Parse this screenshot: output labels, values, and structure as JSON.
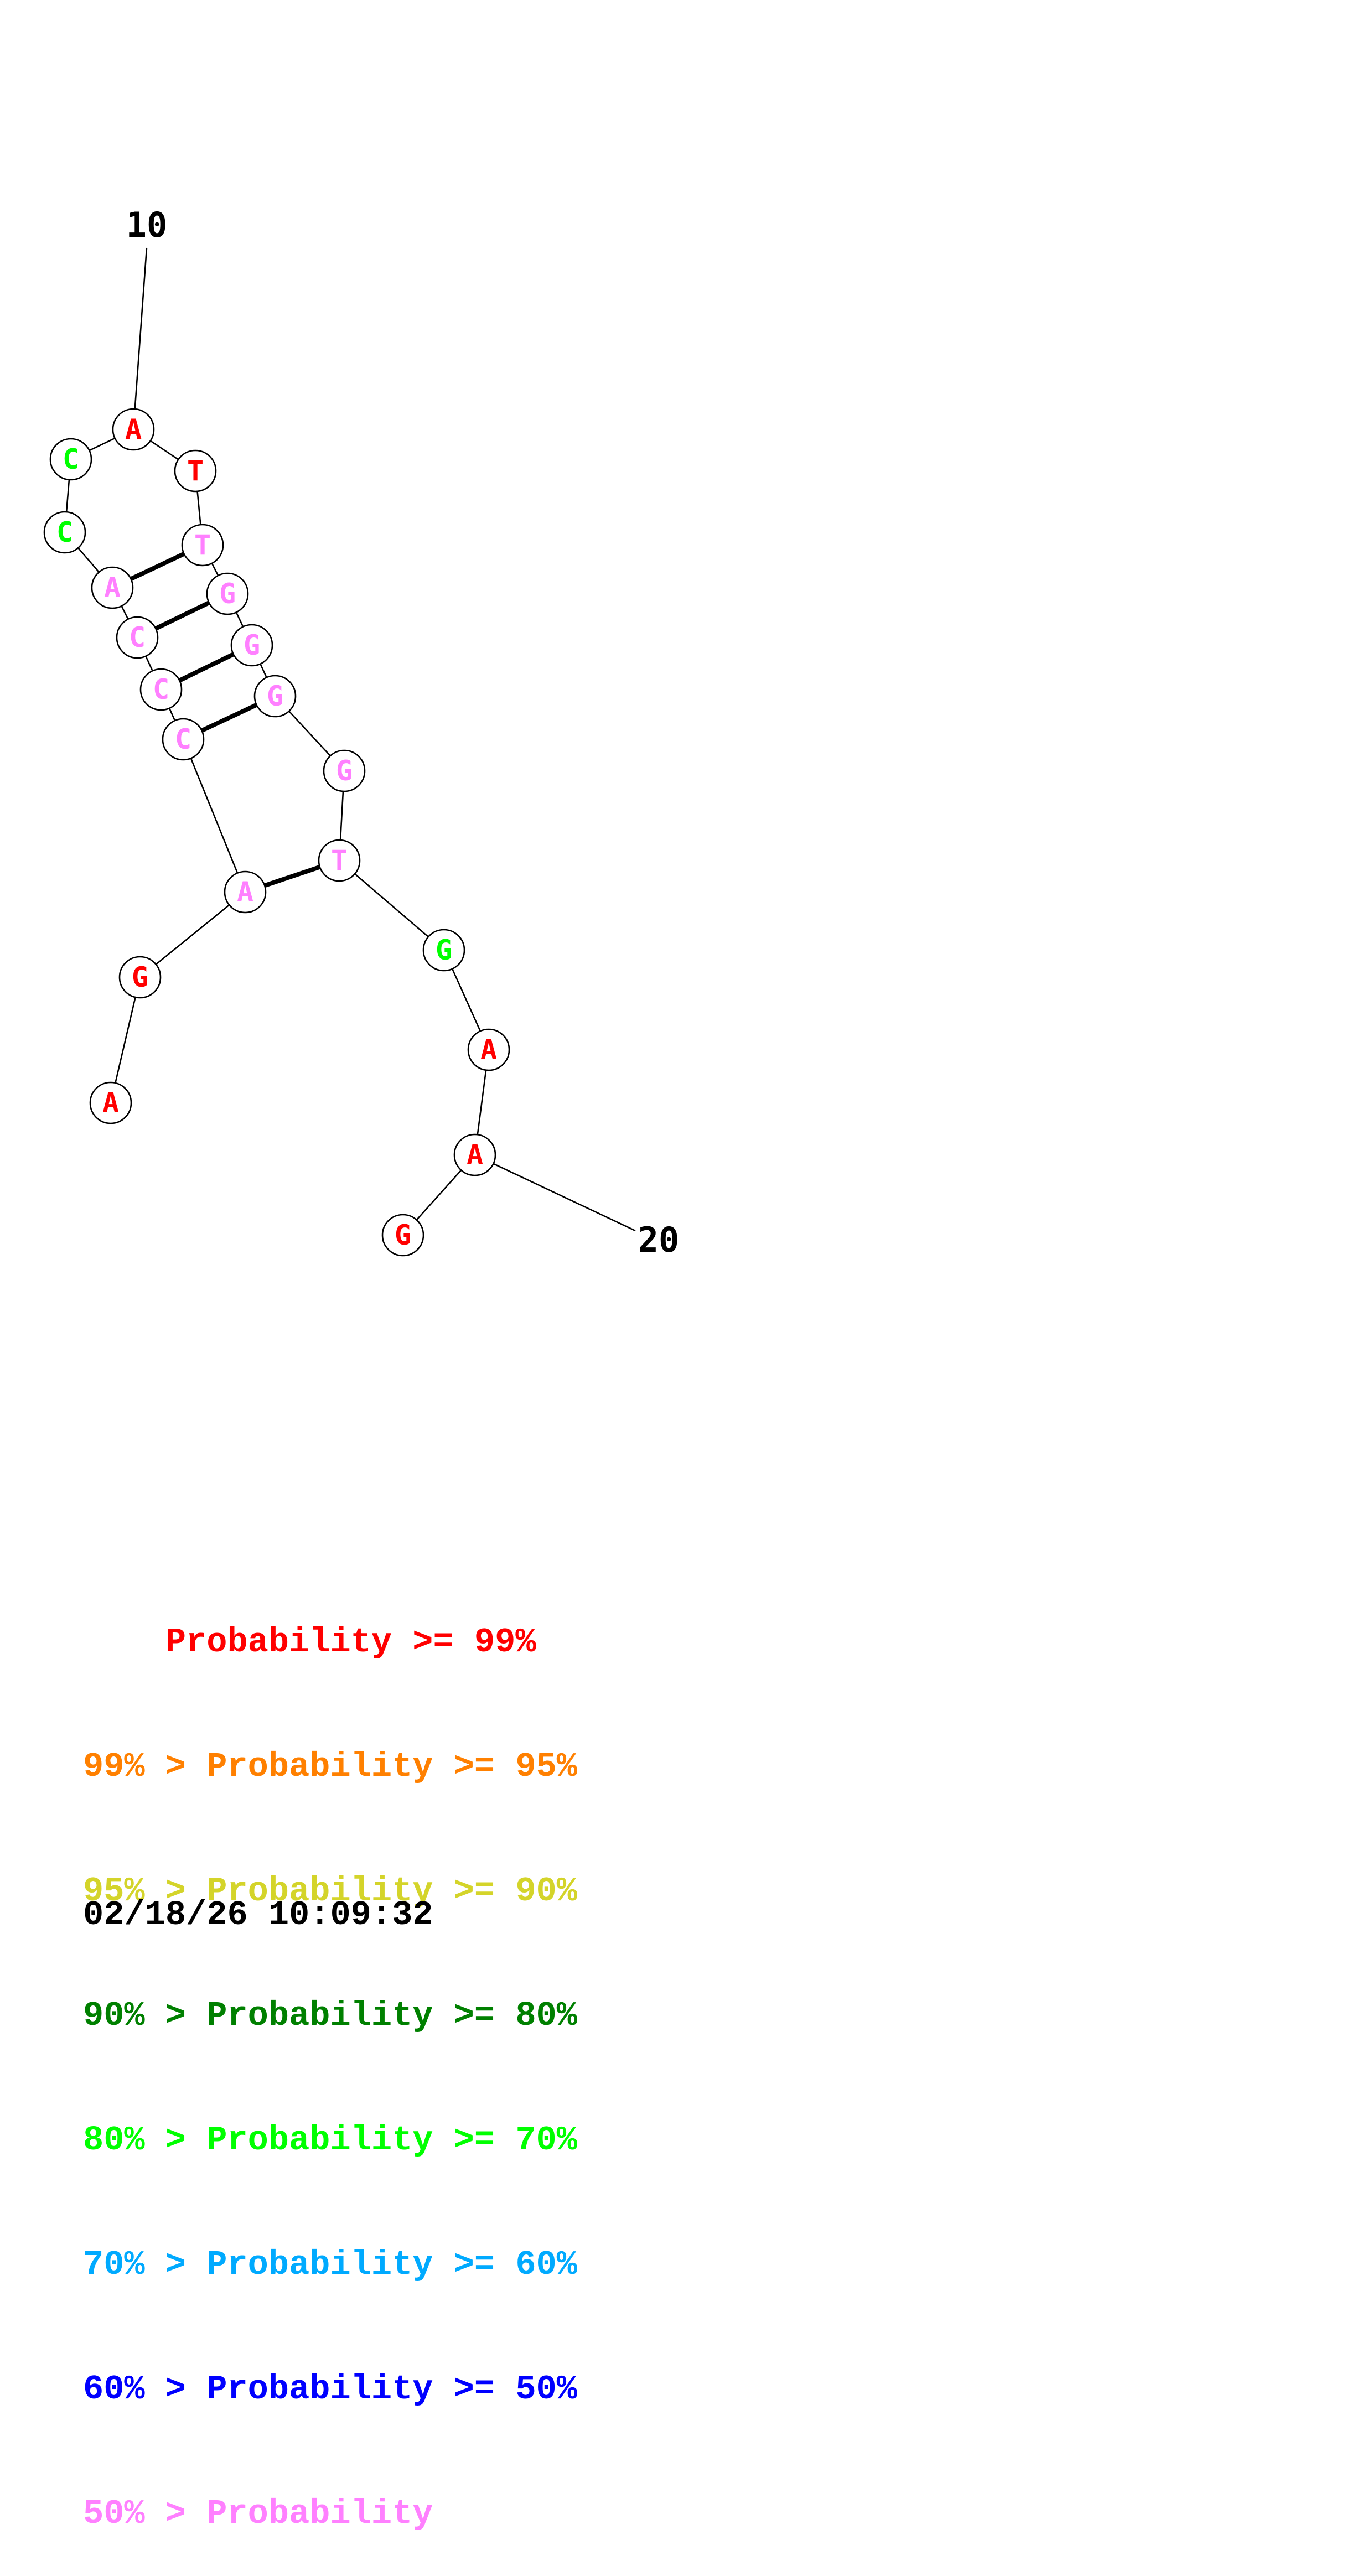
{
  "structure": {
    "start_label": "10",
    "end_label": "20",
    "nucleotides": [
      {
        "letter": "A",
        "tier": "p99"
      },
      {
        "letter": "G",
        "tier": "p99"
      },
      {
        "letter": "A",
        "tier": "p_lt50"
      },
      {
        "letter": "C",
        "tier": "p_lt50"
      },
      {
        "letter": "C",
        "tier": "p_lt50"
      },
      {
        "letter": "C",
        "tier": "p_lt50"
      },
      {
        "letter": "A",
        "tier": "p_lt50"
      },
      {
        "letter": "C",
        "tier": "p70"
      },
      {
        "letter": "C",
        "tier": "p70"
      },
      {
        "letter": "A",
        "tier": "p99"
      },
      {
        "letter": "T",
        "tier": "p99"
      },
      {
        "letter": "T",
        "tier": "p_lt50"
      },
      {
        "letter": "G",
        "tier": "p_lt50"
      },
      {
        "letter": "G",
        "tier": "p_lt50"
      },
      {
        "letter": "G",
        "tier": "p_lt50"
      },
      {
        "letter": "G",
        "tier": "p_lt50"
      },
      {
        "letter": "T",
        "tier": "p_lt50"
      },
      {
        "letter": "G",
        "tier": "p70"
      },
      {
        "letter": "A",
        "tier": "p99"
      },
      {
        "letter": "A",
        "tier": "p99"
      },
      {
        "letter": "G",
        "tier": "p99"
      }
    ],
    "base_pairs": [
      [
        2,
        16
      ],
      [
        3,
        14
      ],
      [
        4,
        13
      ],
      [
        5,
        12
      ],
      [
        6,
        11
      ]
    ]
  },
  "colors": {
    "p99": "#ff0000",
    "p95": "#ff8000",
    "p90": "#d4d42a",
    "p80": "#008000",
    "p70": "#00ff00",
    "p60": "#00aaff",
    "p50": "#0000ff",
    "p_lt50": "#ff80ff"
  },
  "legend": [
    {
      "text": "    Probability >= 99%",
      "tier": "p99"
    },
    {
      "text": "99% > Probability >= 95%",
      "tier": "p95"
    },
    {
      "text": "95% > Probability >= 90%",
      "tier": "p90"
    },
    {
      "text": "90% > Probability >= 80%",
      "tier": "p80"
    },
    {
      "text": "80% > Probability >= 70%",
      "tier": "p70"
    },
    {
      "text": "70% > Probability >= 60%",
      "tier": "p60"
    },
    {
      "text": "60% > Probability >= 50%",
      "tier": "p50"
    },
    {
      "text": "50% > Probability",
      "tier": "p_lt50"
    }
  ],
  "timestamp": "02/18/26 10:09:32"
}
